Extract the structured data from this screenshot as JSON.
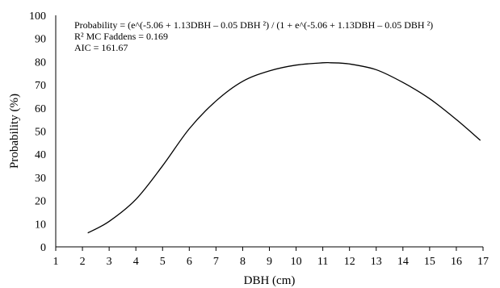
{
  "chart_data": {
    "type": "line",
    "title": "",
    "xlabel": "DBH (cm)",
    "ylabel": "Probability (%)",
    "xlim": [
      1,
      17
    ],
    "ylim": [
      0,
      100
    ],
    "x_ticks": [
      1,
      2,
      3,
      4,
      5,
      6,
      7,
      8,
      9,
      10,
      11,
      12,
      13,
      14,
      15,
      16,
      17
    ],
    "y_ticks": [
      0,
      10,
      20,
      30,
      40,
      50,
      60,
      70,
      80,
      90,
      100
    ],
    "grid": false,
    "annotations": [
      "Probability = (e^(-5.06 + 1.13DBH – 0.05 DBH ²) / (1 + e^(-5.06 + 1.13DBH – 0.05 DBH ²)",
      "R² MC Faddens = 0.169",
      "AIC = 161.67"
    ],
    "series": [
      {
        "x": [
          2.2,
          3,
          4,
          5,
          6,
          7,
          8,
          9,
          10,
          11,
          11.3,
          12,
          13,
          14,
          15,
          16,
          16.9
        ],
        "y": [
          6,
          11,
          20.5,
          35,
          51,
          63,
          71.5,
          76,
          78.5,
          79.5,
          79.5,
          79,
          76.5,
          71,
          64,
          55,
          46
        ]
      }
    ],
    "line_color": "#000000"
  }
}
